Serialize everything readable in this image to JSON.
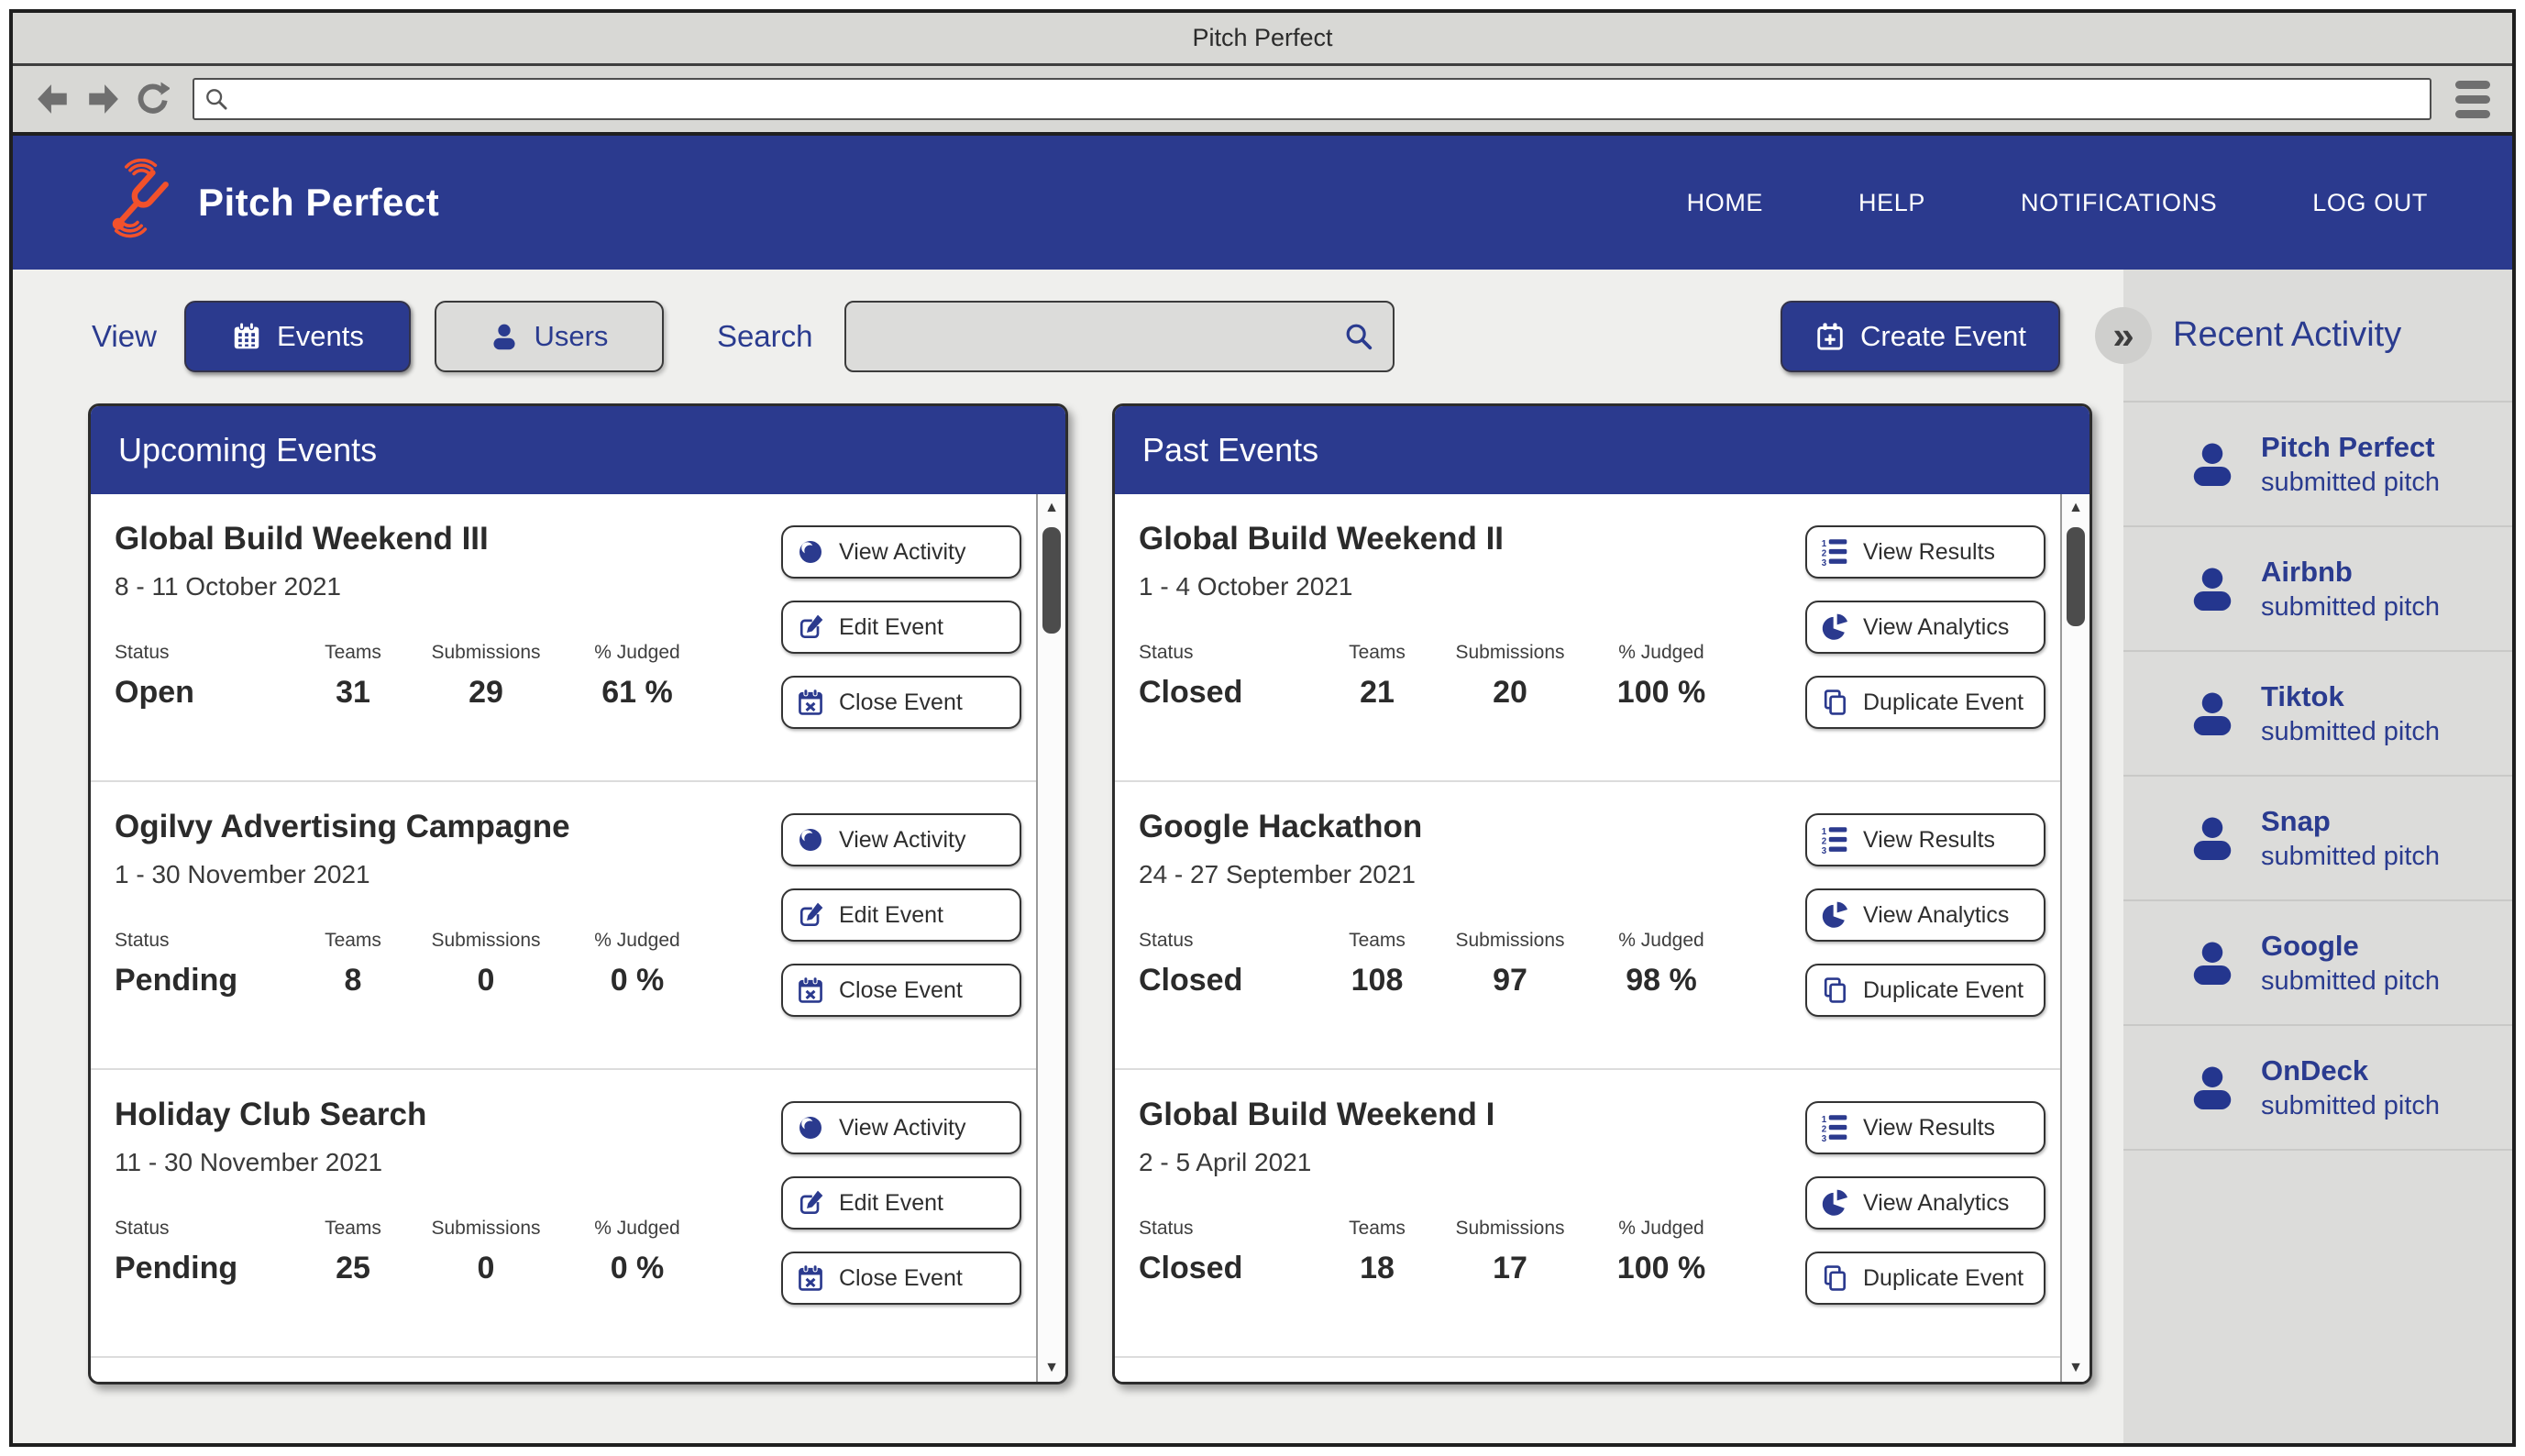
{
  "window": {
    "title": "Pitch Perfect"
  },
  "browser": {
    "url_value": ""
  },
  "header": {
    "brand": "Pitch Perfect",
    "nav": [
      "HOME",
      "HELP",
      "NOTIFICATIONS",
      "LOG OUT"
    ]
  },
  "toolbar": {
    "view_label": "View",
    "events_label": "Events",
    "users_label": "Users",
    "search_label": "Search",
    "search_value": "",
    "create_event_label": "Create Event"
  },
  "panels": {
    "stat_headers": [
      "Status",
      "Teams",
      "Submissions",
      "% Judged"
    ],
    "upcoming": {
      "title": "Upcoming Events",
      "actions": [
        {
          "label": "View Activity",
          "icon": "eye-icon"
        },
        {
          "label": "Edit Event",
          "icon": "edit-icon"
        },
        {
          "label": "Close Event",
          "icon": "calendar-x-icon"
        }
      ],
      "events": [
        {
          "name": "Global Build Weekend III",
          "dates": "8 - 11 October 2021",
          "status": "Open",
          "teams": "31",
          "submissions": "29",
          "judged": "61 %"
        },
        {
          "name": "Ogilvy Advertising Campagne",
          "dates": "1 - 30 November 2021",
          "status": "Pending",
          "teams": "8",
          "submissions": "0",
          "judged": "0 %"
        },
        {
          "name": "Holiday Club Search",
          "dates": "11 - 30 November 2021",
          "status": "Pending",
          "teams": "25",
          "submissions": "0",
          "judged": "0 %"
        }
      ]
    },
    "past": {
      "title": "Past Events",
      "actions": [
        {
          "label": "View Results",
          "icon": "list-results-icon"
        },
        {
          "label": "View Analytics",
          "icon": "pie-chart-icon"
        },
        {
          "label": "Duplicate Event",
          "icon": "duplicate-icon"
        }
      ],
      "events": [
        {
          "name": "Global Build Weekend II",
          "dates": "1 - 4 October 2021",
          "status": "Closed",
          "teams": "21",
          "submissions": "20",
          "judged": "100 %"
        },
        {
          "name": "Google Hackathon",
          "dates": "24 - 27 September 2021",
          "status": "Closed",
          "teams": "108",
          "submissions": "97",
          "judged": "98 %"
        },
        {
          "name": "Global Build Weekend I",
          "dates": "2 - 5 April 2021",
          "status": "Closed",
          "teams": "18",
          "submissions": "17",
          "judged": "100 %"
        }
      ]
    }
  },
  "activity": {
    "title": "Recent Activity",
    "items": [
      {
        "name": "Pitch Perfect",
        "action": "submitted pitch"
      },
      {
        "name": "Airbnb",
        "action": "submitted pitch"
      },
      {
        "name": "Tiktok",
        "action": "submitted pitch"
      },
      {
        "name": "Snap",
        "action": "submitted pitch"
      },
      {
        "name": "Google",
        "action": "submitted pitch"
      },
      {
        "name": "OnDeck",
        "action": "submitted pitch"
      }
    ]
  },
  "colors": {
    "brand_blue": "#2b3a8e",
    "logo_red": "#f2512b"
  }
}
